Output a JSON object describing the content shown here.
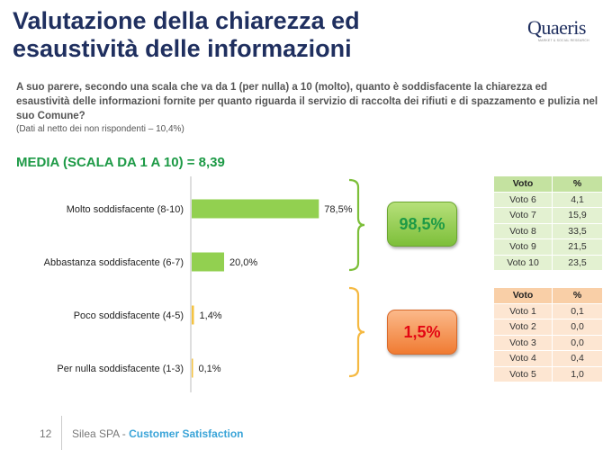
{
  "title_line1": "Valutazione della chiarezza ed",
  "title_line2": "esaustività delle informazioni",
  "logo": {
    "name": "Quaeris",
    "tagline": "MARKET & SOCIAL RESEARCH"
  },
  "question": "A suo parere, secondo una scala che va da 1 (per nulla) a 10 (molto), quanto è soddisfacente la chiarezza ed esaustività delle informazioni fornite per quanto riguarda il servizio di raccolta dei rifiuti e di spazzamento e pulizia nel suo Comune?",
  "note": "(Dati al netto dei non rispondenti – 10,4%)",
  "media": "MEDIA (SCALA DA 1 A 10) = 8,39",
  "chart_data": {
    "type": "bar",
    "orientation": "horizontal",
    "categories": [
      "Molto soddisfacente (8-10)",
      "Abbastanza soddisfacente (6-7)",
      "Poco soddisfacente (4-5)",
      "Per nulla soddisfacente (1-3)"
    ],
    "values": [
      78.5,
      20.0,
      1.4,
      0.1
    ],
    "value_labels": [
      "78,5%",
      "20,0%",
      "1,4%",
      "0,1%"
    ],
    "colors": [
      "#92d050",
      "#92d050",
      "#f5c342",
      "#f5c342"
    ],
    "xlim": [
      0,
      100
    ],
    "grid": false
  },
  "summary": {
    "positive": "98,5%",
    "negative": "1,5%",
    "positive_color": "#7dbf3a",
    "negative_color": "#f07b32"
  },
  "table_positive": {
    "headers": [
      "Voto",
      "%"
    ],
    "rows": [
      [
        "Voto 6",
        "4,1"
      ],
      [
        "Voto 7",
        "15,9"
      ],
      [
        "Voto 8",
        "33,5"
      ],
      [
        "Voto 9",
        "21,5"
      ],
      [
        "Voto 10",
        "23,5"
      ]
    ]
  },
  "table_negative": {
    "headers": [
      "Voto",
      "%"
    ],
    "rows": [
      [
        "Voto 1",
        "0,1"
      ],
      [
        "Voto 2",
        "0,0"
      ],
      [
        "Voto 3",
        "0,0"
      ],
      [
        "Voto 4",
        "0,4"
      ],
      [
        "Voto 5",
        "1,0"
      ]
    ]
  },
  "footer": {
    "page": "12",
    "company": "Silea SPA - ",
    "section": "Customer Satisfaction"
  }
}
